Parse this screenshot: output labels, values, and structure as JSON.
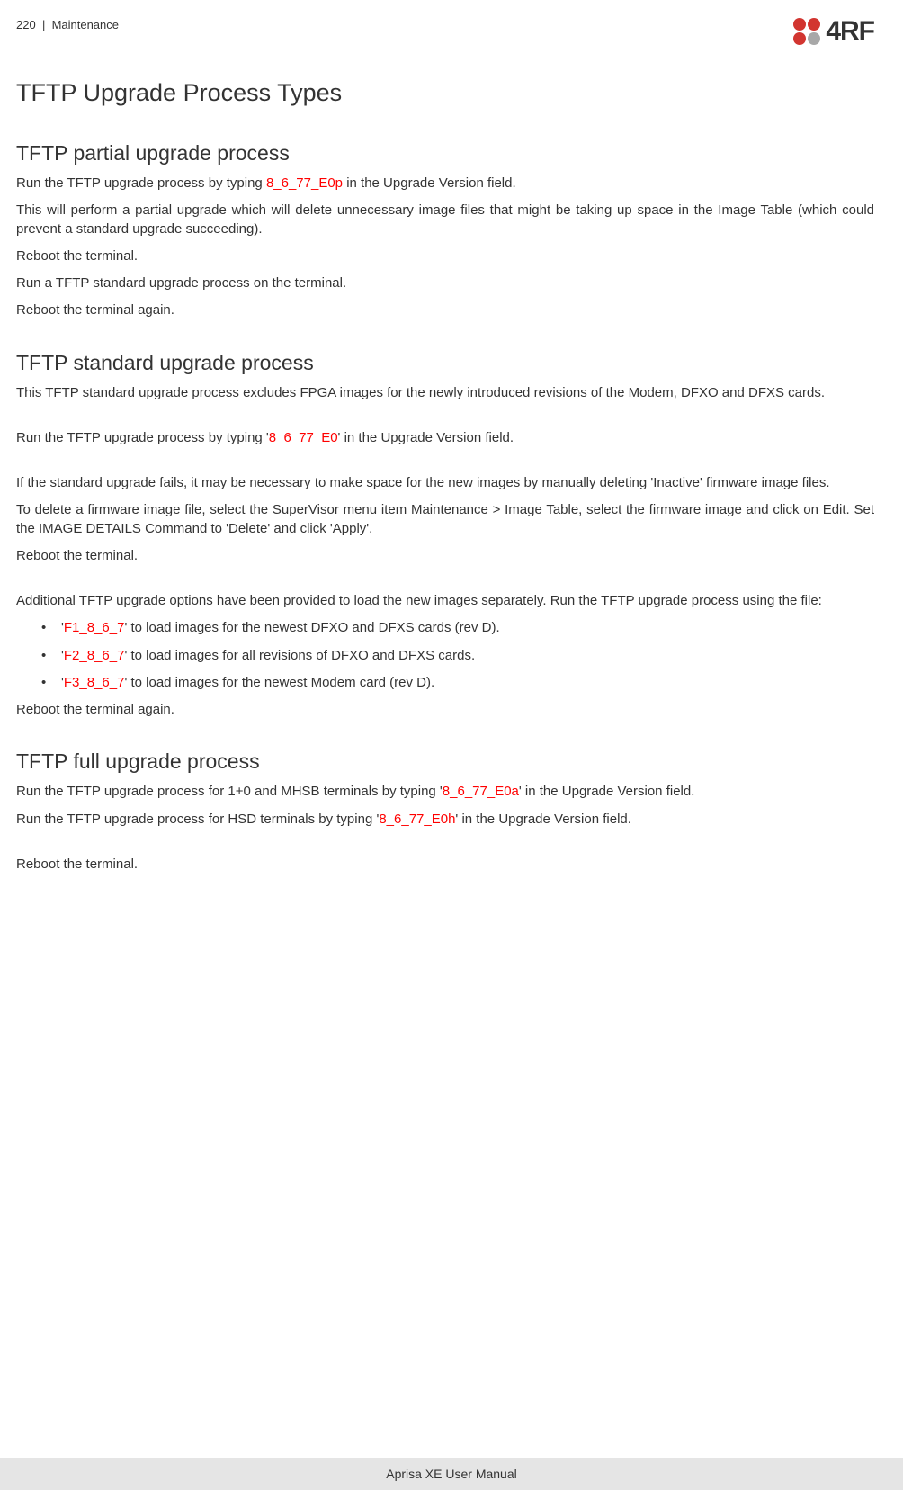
{
  "header": {
    "page_number": "220",
    "separator": "|",
    "section": "Maintenance"
  },
  "logo": {
    "text": "4RF",
    "dot_colors": [
      "#d23530",
      "#d23530",
      "#d23530",
      "#a8a8a8"
    ]
  },
  "title": "TFTP Upgrade Process Types",
  "sections": {
    "partial": {
      "heading": "TFTP partial upgrade process",
      "p1_a": "Run the TFTP upgrade process by typing ",
      "p1_code": "8_6_77_E0p",
      "p1_b": " in the Upgrade Version field.",
      "p2": "This will perform a partial upgrade which will delete unnecessary image files that might be taking up space in the Image Table (which could prevent a standard upgrade succeeding).",
      "p3": "Reboot the terminal.",
      "p4": "Run a TFTP standard upgrade process on the terminal.",
      "p5": "Reboot the terminal again."
    },
    "standard": {
      "heading": "TFTP standard upgrade process",
      "p1": "This TFTP standard upgrade process excludes FPGA images for the newly introduced revisions of the Modem, DFXO and DFXS cards.",
      "p2_a": "Run the TFTP upgrade process by typing '",
      "p2_code": "8_6_77_E0",
      "p2_b": "' in the Upgrade Version field.",
      "p3": "If the standard upgrade fails, it may be necessary to make space for the new images by manually deleting 'Inactive' firmware image files.",
      "p4": "To delete a firmware image file, select the SuperVisor menu item Maintenance > Image Table, select the firmware image and click on Edit. Set the IMAGE DETAILS Command to 'Delete' and click 'Apply'.",
      "p5": "Reboot the terminal.",
      "p6": "Additional TFTP upgrade options have been provided to load the new images separately. Run the TFTP upgrade process using the file:",
      "bullets": [
        {
          "pre": "'",
          "code": "F1_8_6_7",
          "post": "' to load images for the newest DFXO and DFXS cards (rev D)."
        },
        {
          "pre": "'",
          "code": "F2_8_6_7",
          "post": "' to load images for all revisions of DFXO and DFXS cards."
        },
        {
          "pre": "'",
          "code": "F3_8_6_7",
          "post": "' to load images for the newest Modem card (rev D)."
        }
      ],
      "p7": "Reboot the terminal again."
    },
    "full": {
      "heading": "TFTP full upgrade process",
      "p1_a": "Run the TFTP upgrade process for 1+0 and MHSB terminals by typing '",
      "p1_code": "8_6_77_E0a",
      "p1_b": "' in the Upgrade Version field.",
      "p2_a": "Run the TFTP upgrade process for HSD terminals by typing '",
      "p2_code": "8_6_77_E0h",
      "p2_b": "' in the Upgrade Version field.",
      "p3": "Reboot the terminal."
    }
  },
  "footer": "Aprisa XE User Manual"
}
